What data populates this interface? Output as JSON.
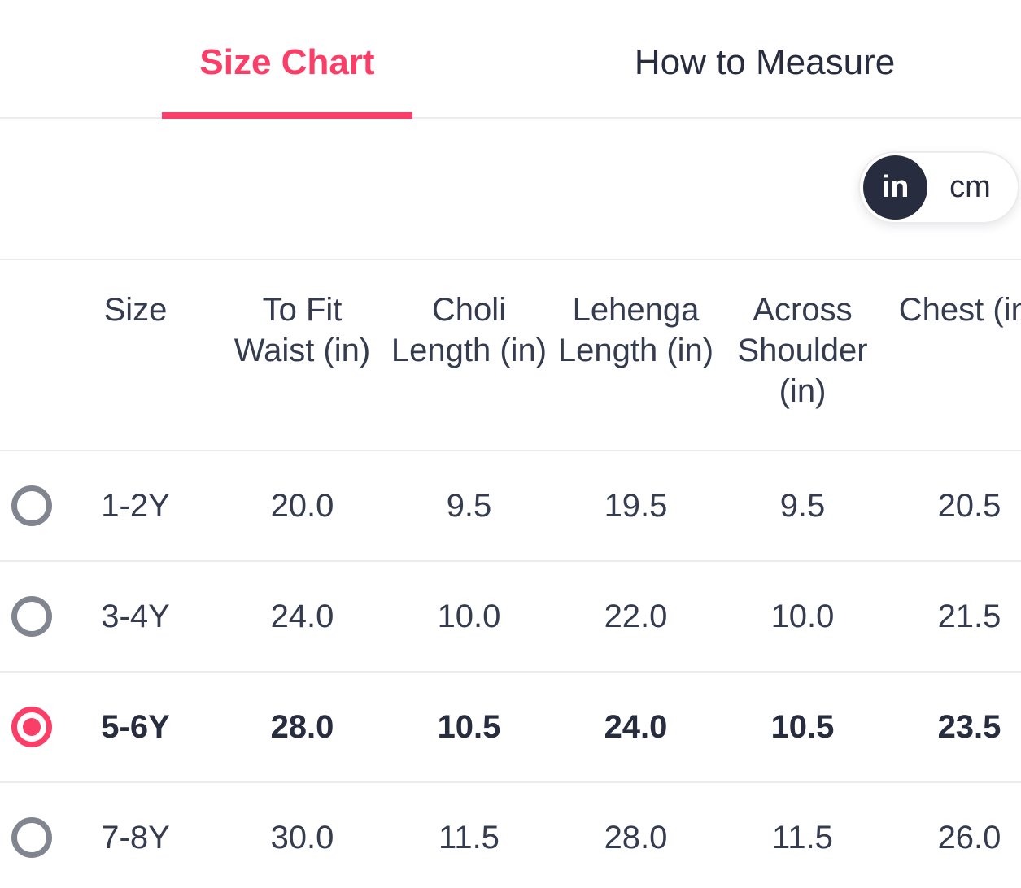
{
  "tabs": {
    "size_chart": "Size Chart",
    "how_to_measure": "How to Measure"
  },
  "unit_toggle": {
    "selected": "in",
    "in_label": "in",
    "cm_label": "cm"
  },
  "colors": {
    "accent_pink": "#fb3e68",
    "dark_navy": "#282c3f",
    "body_text": "#353c4f",
    "radio_gray": "#81858f",
    "divider": "#ececee"
  },
  "size_table": {
    "columns": [
      "Size",
      "To Fit Waist (in)",
      "Choli Length (in)",
      "Lehenga Length (in)",
      "Across Shoulder (in)",
      "Chest (in)"
    ],
    "rows": [
      {
        "selected": false,
        "size": "1-2Y",
        "values": [
          "20.0",
          "9.5",
          "19.5",
          "9.5",
          "20.5"
        ]
      },
      {
        "selected": false,
        "size": "3-4Y",
        "values": [
          "24.0",
          "10.0",
          "22.0",
          "10.0",
          "21.5"
        ]
      },
      {
        "selected": true,
        "size": "5-6Y",
        "values": [
          "28.0",
          "10.5",
          "24.0",
          "10.5",
          "23.5"
        ]
      },
      {
        "selected": false,
        "size": "7-8Y",
        "values": [
          "30.0",
          "11.5",
          "28.0",
          "11.5",
          "26.0"
        ]
      }
    ]
  }
}
